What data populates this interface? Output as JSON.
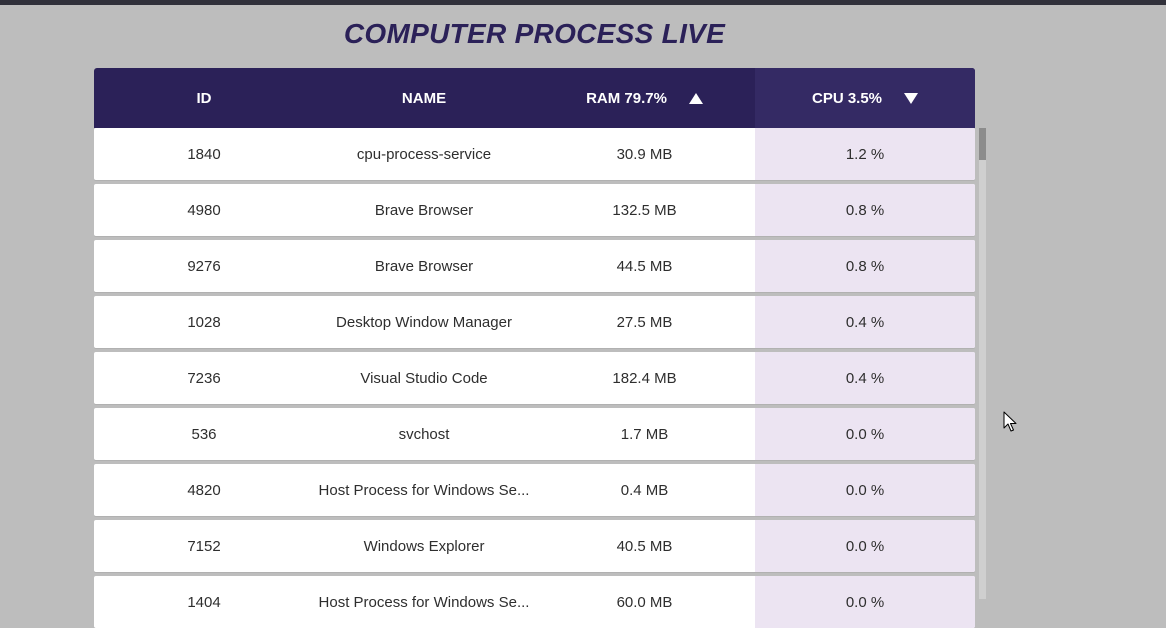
{
  "title": "COMPUTER PROCESS LIVE",
  "header": {
    "id": "ID",
    "name": "NAME",
    "ram": "RAM 79.7%",
    "cpu": "CPU 3.5%",
    "ram_sort": "arrow-up-icon",
    "cpu_sort": "arrow-down-icon"
  },
  "rows": [
    {
      "id": "1840",
      "name": "cpu-process-service",
      "ram": "30.9 MB",
      "cpu": "1.2 %"
    },
    {
      "id": "4980",
      "name": "Brave Browser",
      "ram": "132.5 MB",
      "cpu": "0.8 %"
    },
    {
      "id": "9276",
      "name": "Brave Browser",
      "ram": "44.5 MB",
      "cpu": "0.8 %"
    },
    {
      "id": "1028",
      "name": "Desktop Window Manager",
      "ram": "27.5 MB",
      "cpu": "0.4 %"
    },
    {
      "id": "7236",
      "name": "Visual Studio Code",
      "ram": "182.4 MB",
      "cpu": "0.4 %"
    },
    {
      "id": "536",
      "name": "svchost",
      "ram": "1.7 MB",
      "cpu": "0.0 %"
    },
    {
      "id": "4820",
      "name": "Host Process for Windows Se...",
      "ram": "0.4 MB",
      "cpu": "0.0 %"
    },
    {
      "id": "7152",
      "name": "Windows Explorer",
      "ram": "40.5 MB",
      "cpu": "0.0 %"
    },
    {
      "id": "1404",
      "name": "Host Process for Windows Se...",
      "ram": "60.0 MB",
      "cpu": "0.0 %"
    }
  ],
  "colors": {
    "header_bg": "#2b2158",
    "cpu_column_bg": "#ece4f2",
    "page_bg": "#bdbdbd"
  }
}
